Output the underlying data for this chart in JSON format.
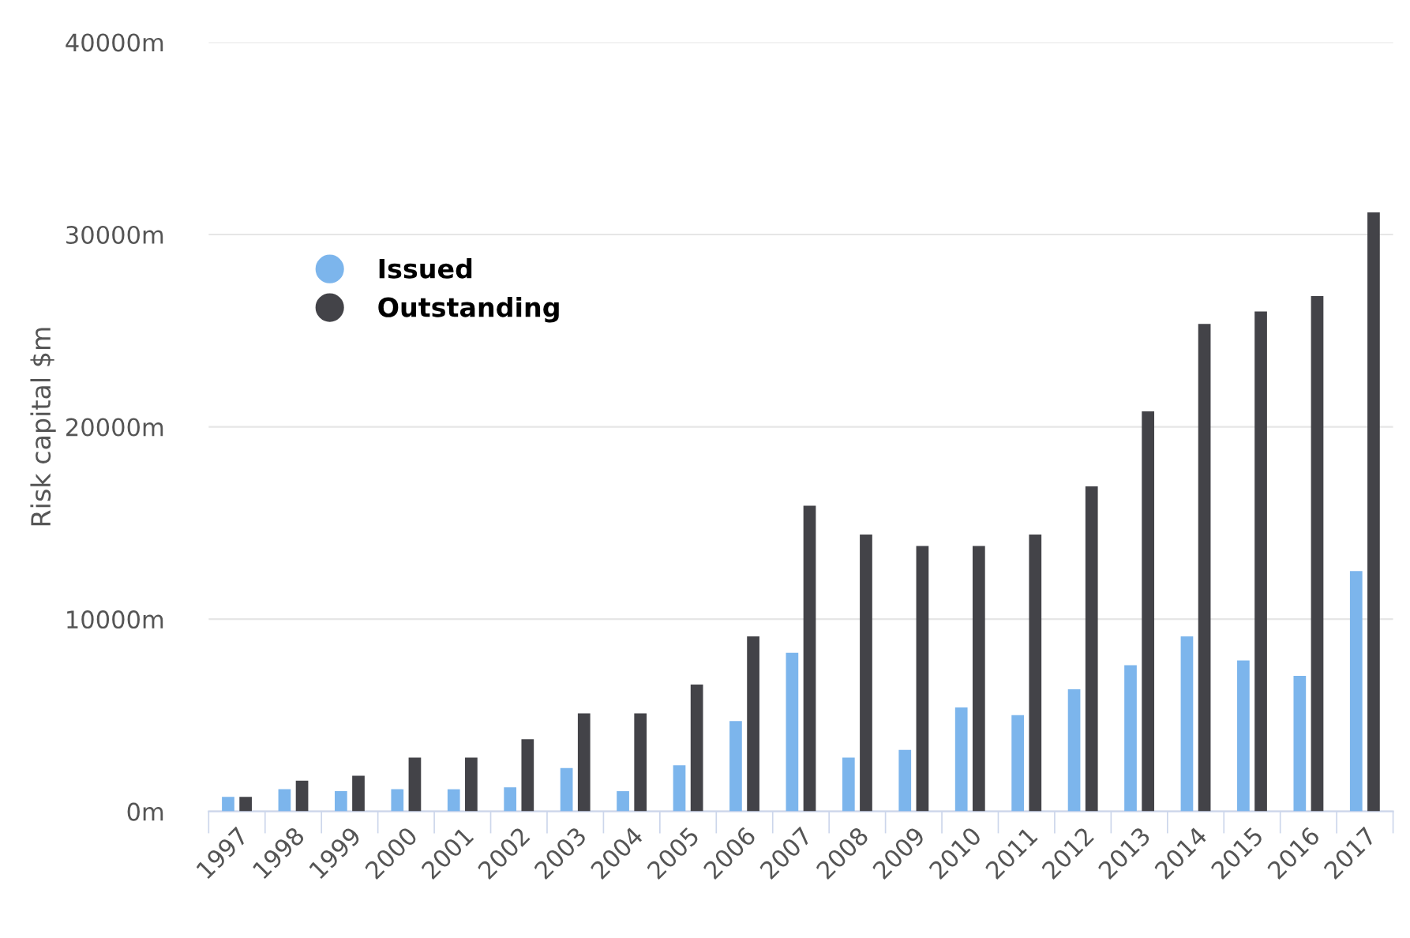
{
  "chart_data": {
    "type": "bar",
    "ylabel": "Risk capital $m",
    "categories": [
      "1997",
      "1998",
      "1999",
      "2000",
      "2001",
      "2002",
      "2003",
      "2004",
      "2005",
      "2006",
      "2007",
      "2008",
      "2009",
      "2010",
      "2011",
      "2012",
      "2013",
      "2014",
      "2015",
      "2016",
      "2017"
    ],
    "series": [
      {
        "name": "Issued",
        "color": "#7cb5ec",
        "values": [
          750,
          1150,
          1050,
          1150,
          1150,
          1250,
          2250,
          1050,
          2400,
          4700,
          8250,
          2800,
          3200,
          5400,
          5000,
          6350,
          7600,
          9100,
          7850,
          7050,
          12500
        ]
      },
      {
        "name": "Outstanding",
        "color": "#434348",
        "values": [
          750,
          1600,
          1850,
          2800,
          2800,
          3750,
          5100,
          5100,
          6600,
          9100,
          15900,
          14400,
          13800,
          13800,
          14400,
          16900,
          20800,
          25350,
          26000,
          26800,
          31150
        ]
      }
    ],
    "ylim": [
      0,
      40000
    ],
    "yticks": [
      {
        "value": 0,
        "label": "0m"
      },
      {
        "value": 10000,
        "label": "10000m"
      },
      {
        "value": 20000,
        "label": "20000m"
      },
      {
        "value": 30000,
        "label": "30000m"
      },
      {
        "value": 40000,
        "label": "40000m"
      }
    ],
    "grid": "y",
    "legend": "top left"
  }
}
